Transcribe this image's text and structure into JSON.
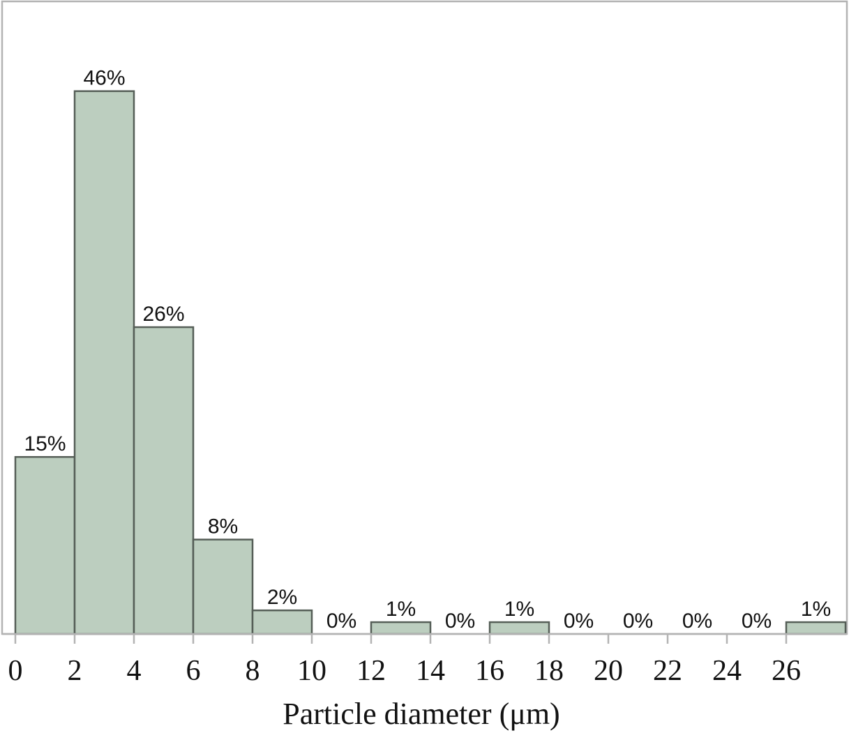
{
  "chart_data": {
    "type": "bar",
    "title": "",
    "xlabel": "Particle diameter (μm)",
    "ylabel": "",
    "bin_edges": [
      0,
      2,
      4,
      6,
      8,
      10,
      12,
      14,
      16,
      18,
      20,
      22,
      24,
      26,
      28
    ],
    "values": [
      15,
      46,
      26,
      8,
      2,
      0,
      1,
      0,
      1,
      0,
      0,
      0,
      0,
      1
    ],
    "value_labels": [
      "15%",
      "46%",
      "26%",
      "8%",
      "2%",
      "0%",
      "1%",
      "0%",
      "1%",
      "0%",
      "0%",
      "0%",
      "0%",
      "1%"
    ],
    "x_ticks": [
      "0",
      "2",
      "4",
      "6",
      "8",
      "10",
      "12",
      "14",
      "16",
      "18",
      "20",
      "22",
      "24",
      "26"
    ],
    "xlim": [
      0,
      28
    ],
    "ylim": [
      0,
      53
    ],
    "grid": false,
    "legend": "none",
    "colors": {
      "bar_fill": "#bccebf",
      "bar_edge": "#555e57",
      "frame": "#b3b3b3"
    }
  }
}
